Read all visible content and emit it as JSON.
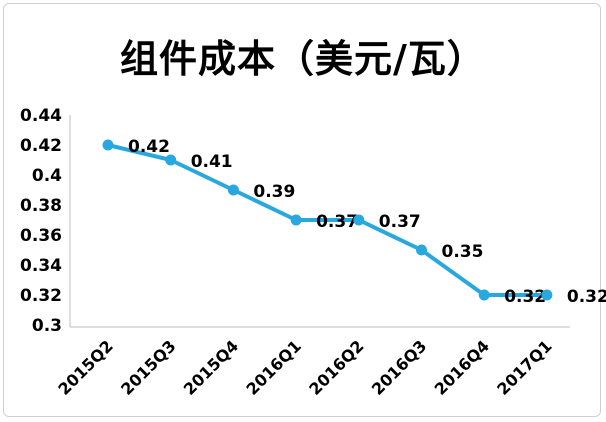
{
  "chart_data": {
    "type": "line",
    "title": "组件成本（美元/瓦）",
    "categories": [
      "2015Q2",
      "2015Q3",
      "2015Q4",
      "2016Q1",
      "2016Q2",
      "2016Q3",
      "2016Q4",
      "2017Q1"
    ],
    "series": [
      {
        "values": [
          0.42,
          0.41,
          0.39,
          0.37,
          0.37,
          0.35,
          0.32,
          0.32
        ]
      }
    ],
    "data_labels": [
      "0.42",
      "0.41",
      "0.39",
      "0.37",
      "0.37",
      "0.35",
      "0.32",
      "0.32"
    ],
    "ylim": [
      0.3,
      0.44
    ],
    "yticks": [
      0.3,
      0.32,
      0.34,
      0.36,
      0.38,
      0.4,
      0.42,
      0.44
    ],
    "ytick_labels": [
      "0.3",
      "0.32",
      "0.34",
      "0.36",
      "0.38",
      "0.4",
      "0.42",
      "0.44"
    ],
    "grid": false,
    "legend": "none",
    "line_color": "#29a8e0",
    "marker_color": "#29a8e0"
  }
}
